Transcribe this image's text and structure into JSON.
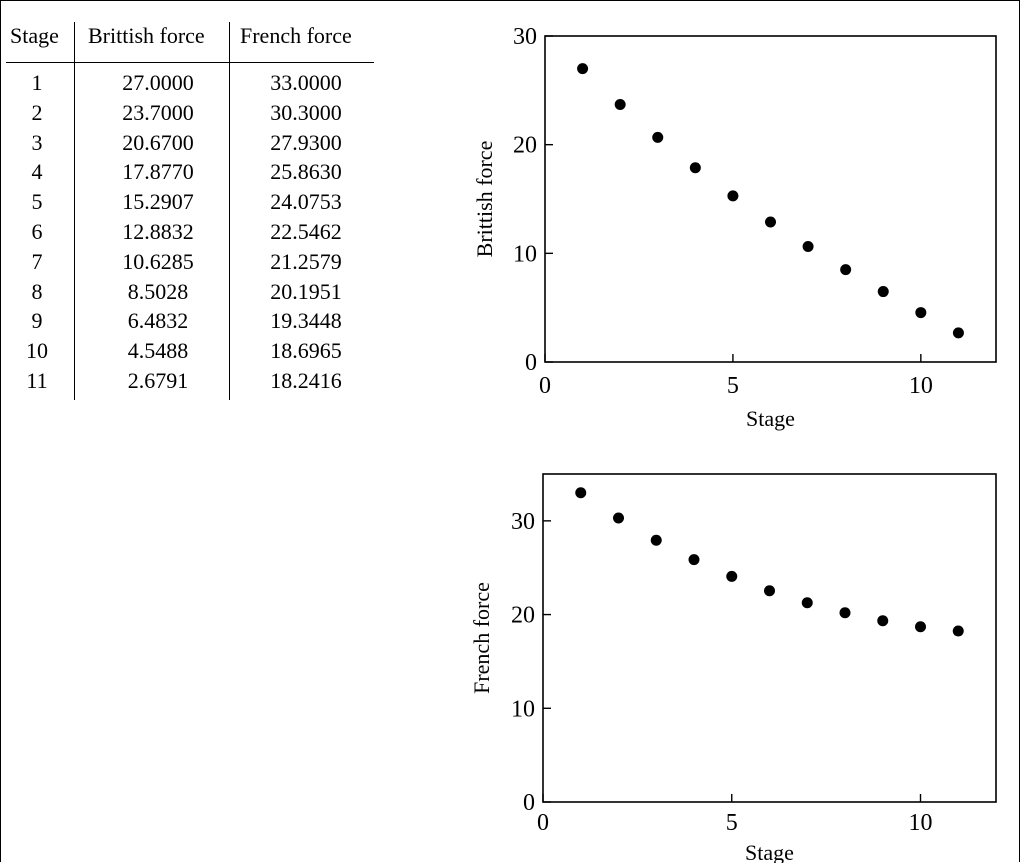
{
  "table": {
    "headers": {
      "stage": "Stage",
      "british": "Brittish force",
      "french": "French force"
    },
    "rows": [
      {
        "stage": "1",
        "british": "27.0000",
        "french": "33.0000"
      },
      {
        "stage": "2",
        "british": "23.7000",
        "french": "30.3000"
      },
      {
        "stage": "3",
        "british": "20.6700",
        "french": "27.9300"
      },
      {
        "stage": "4",
        "british": "17.8770",
        "french": "25.8630"
      },
      {
        "stage": "5",
        "british": "15.2907",
        "french": "24.0753"
      },
      {
        "stage": "6",
        "british": "12.8832",
        "french": "22.5462"
      },
      {
        "stage": "7",
        "british": "10.6285",
        "french": "21.2579"
      },
      {
        "stage": "8",
        "british": "8.5028",
        "french": "20.1951"
      },
      {
        "stage": "9",
        "british": "6.4832",
        "french": "19.3448"
      },
      {
        "stage": "10",
        "british": "4.5488",
        "french": "18.6965"
      },
      {
        "stage": "11",
        "british": "2.6791",
        "french": "18.2416"
      }
    ]
  },
  "chart_data": [
    {
      "type": "scatter",
      "title": "",
      "xlabel": "Stage",
      "ylabel": "Brittish force",
      "xlim": [
        0,
        12
      ],
      "ylim": [
        0,
        30
      ],
      "xticks": [
        0,
        5,
        10
      ],
      "yticks": [
        0,
        10,
        20,
        30
      ],
      "grid": false,
      "marker_color": "#000000",
      "x": [
        1,
        2,
        3,
        4,
        5,
        6,
        7,
        8,
        9,
        10,
        11
      ],
      "y": [
        27.0,
        23.7,
        20.67,
        17.877,
        15.2907,
        12.8832,
        10.6285,
        8.5028,
        6.4832,
        4.5488,
        2.6791
      ]
    },
    {
      "type": "scatter",
      "title": "",
      "xlabel": "Stage",
      "ylabel": "French force",
      "xlim": [
        0,
        12
      ],
      "ylim": [
        0,
        35
      ],
      "xticks": [
        0,
        5,
        10
      ],
      "yticks": [
        0,
        10,
        20,
        30
      ],
      "grid": false,
      "marker_color": "#000000",
      "x": [
        1,
        2,
        3,
        4,
        5,
        6,
        7,
        8,
        9,
        10,
        11
      ],
      "y": [
        33.0,
        30.3,
        27.93,
        25.863,
        24.0753,
        22.5462,
        21.2579,
        20.1951,
        19.3448,
        18.6965,
        18.2416
      ]
    }
  ]
}
